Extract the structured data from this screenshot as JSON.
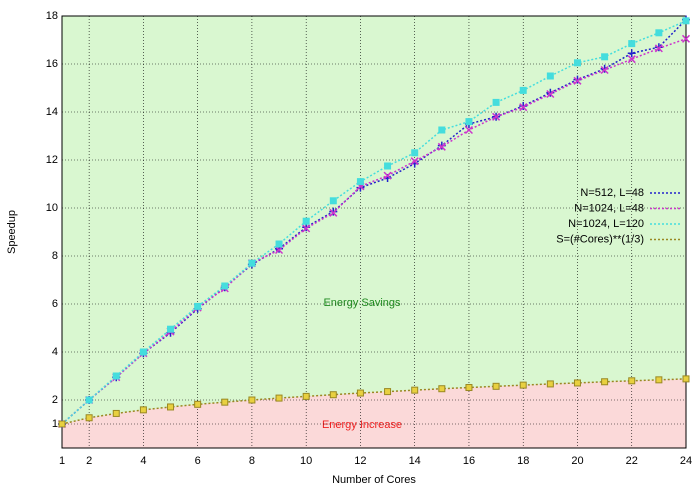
{
  "chart_data": {
    "type": "line",
    "x_label": "Number of Cores",
    "y_label": "Speedup",
    "annotations": [
      "Energy Savings",
      "Energy Increase"
    ],
    "x": [
      1,
      2,
      3,
      4,
      5,
      6,
      7,
      8,
      9,
      10,
      11,
      12,
      13,
      14,
      15,
      16,
      17,
      18,
      19,
      20,
      21,
      22,
      23,
      24
    ],
    "series": [
      {
        "name": "N=512, L=48",
        "color": "#2222cc",
        "marker": "plus",
        "values": [
          1,
          2,
          2.95,
          3.95,
          4.8,
          5.8,
          6.7,
          7.65,
          8.3,
          9.2,
          9.85,
          10.85,
          11.25,
          11.85,
          12.6,
          13.5,
          13.8,
          14.25,
          14.8,
          15.35,
          15.8,
          16.45,
          16.7,
          17.85
        ]
      },
      {
        "name": "N=1024, L=48",
        "color": "#cc33cc",
        "marker": "cross",
        "values": [
          1,
          2,
          2.95,
          3.95,
          4.85,
          5.85,
          6.65,
          7.7,
          8.25,
          9.15,
          9.8,
          10.9,
          11.35,
          11.95,
          12.55,
          13.25,
          13.8,
          14.2,
          14.75,
          15.3,
          15.75,
          16.2,
          16.65,
          17.05
        ]
      },
      {
        "name": "N=1024, L=120",
        "color": "#44dddd",
        "marker": "square",
        "values": [
          1,
          2,
          3,
          4,
          4.95,
          5.9,
          6.75,
          7.7,
          8.5,
          9.45,
          10.3,
          11.1,
          11.75,
          12.3,
          13.25,
          13.6,
          14.4,
          14.9,
          15.5,
          16.05,
          16.3,
          16.85,
          17.3,
          17.8
        ]
      },
      {
        "name": "S=(#Cores)**(1/3)",
        "color": "#998822",
        "marker": "square",
        "values": [
          1,
          1.26,
          1.44,
          1.59,
          1.71,
          1.82,
          1.91,
          2,
          2.08,
          2.15,
          2.22,
          2.29,
          2.35,
          2.41,
          2.47,
          2.52,
          2.57,
          2.62,
          2.67,
          2.71,
          2.76,
          2.8,
          2.84,
          2.88
        ]
      }
    ],
    "xlim": [
      1,
      24
    ],
    "xticks": [
      1,
      2,
      4,
      6,
      8,
      10,
      12,
      14,
      16,
      18,
      20,
      22,
      24
    ],
    "ylim": [
      0,
      18
    ],
    "yticks": [
      1,
      2,
      4,
      6,
      8,
      10,
      12,
      14,
      16,
      18
    ],
    "legend": "right"
  }
}
